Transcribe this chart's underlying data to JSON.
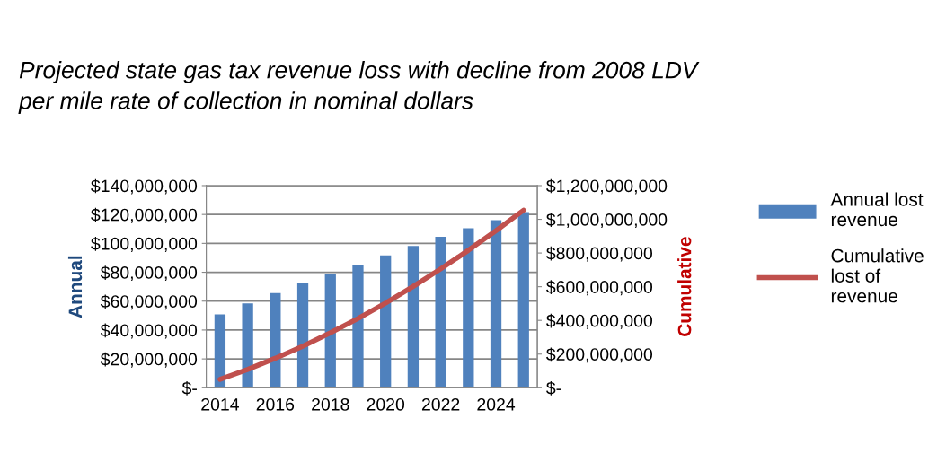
{
  "chart_data": {
    "type": "bar",
    "title": "Projected state gas tax revenue loss with decline from 2008 LDV\nper mile rate of collection in nominal dollars",
    "ylabel": "Annual",
    "y2label": "Cumulative",
    "categories": [
      "2014",
      null,
      "2016",
      null,
      "2018",
      null,
      "2020",
      null,
      "2022",
      null,
      "2024",
      null
    ],
    "series": [
      {
        "name": "Annual lost\nrevenue",
        "color": "#4f81bd",
        "values": [
          50800000,
          58400000,
          65600000,
          72400000,
          78700000,
          85100000,
          91700000,
          98200000,
          104600000,
          110400000,
          116100000,
          121700000
        ]
      },
      {
        "name": "Cumulative\nlost of\nrevenue",
        "type": "line",
        "axis": "y2",
        "color": "#c0504d",
        "values": [
          50000000,
          109000000,
          175000000,
          247000000,
          326000000,
          411000000,
          503000000,
          601000000,
          706000000,
          816000000,
          932000000,
          1054000000
        ]
      }
    ],
    "ylim": [
      0,
      140000000
    ],
    "yticks": [
      {
        "value": 0,
        "label": "$-"
      },
      {
        "value": 20000000,
        "label": "$20,000,000"
      },
      {
        "value": 40000000,
        "label": "$40,000,000"
      },
      {
        "value": 60000000,
        "label": "$60,000,000"
      },
      {
        "value": 80000000,
        "label": "$80,000,000"
      },
      {
        "value": 100000000,
        "label": "$100,000,000"
      },
      {
        "value": 120000000,
        "label": "$120,000,000"
      },
      {
        "value": 140000000,
        "label": "$140,000,000"
      }
    ],
    "y2lim": [
      0,
      1200000000
    ],
    "y2ticks": [
      {
        "value": 0,
        "label": "$-"
      },
      {
        "value": 200000000,
        "label": "$200,000,000"
      },
      {
        "value": 400000000,
        "label": "$400,000,000"
      },
      {
        "value": 600000000,
        "label": "$600,000,000"
      },
      {
        "value": 800000000,
        "label": "$800,000,000"
      },
      {
        "value": 1000000000,
        "label": "$1,000,000,000"
      },
      {
        "value": 1200000000,
        "label": "$1,200,000,000"
      }
    ],
    "grid": "y",
    "legend": "right",
    "marker": "none",
    "line_style": "solid"
  }
}
